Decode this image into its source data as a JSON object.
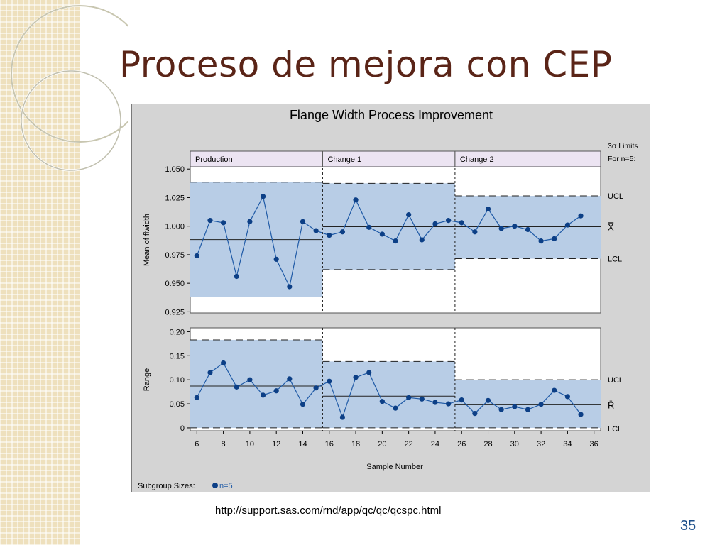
{
  "slide": {
    "title": "Proceso de mejora con CEP",
    "source_url": "http://support.sas.com/rnd/app/qc/qc/qcspc.html",
    "page_number": "35"
  },
  "colors": {
    "title": "#5a2417",
    "chart_background": "#d4d4d4",
    "control_band": "#b8cde6",
    "phase_header": "#ece4f2",
    "series_line": "#1f5aa6",
    "series_marker": "#0c3f86",
    "page_number": "#1c4f8a"
  },
  "chart_data": {
    "type": "line",
    "title": "Flange Width Process Improvement",
    "xlabel": "Sample Number",
    "x_ticks": [
      6,
      8,
      10,
      12,
      14,
      16,
      18,
      20,
      22,
      24,
      26,
      28,
      30,
      32,
      34,
      36
    ],
    "xlim": [
      5.5,
      36.5
    ],
    "limits_note": [
      "3σ Limits",
      "For n=5:"
    ],
    "subgroup_label": "Subgroup Sizes:",
    "subgroup_value": "n=5",
    "phases": [
      {
        "name": "Production",
        "start": 5.5,
        "end": 15.5
      },
      {
        "name": "Change 1",
        "start": 15.5,
        "end": 25.5
      },
      {
        "name": "Change 2",
        "start": 25.5,
        "end": 36.5
      }
    ],
    "panels": [
      {
        "name": "mean",
        "ylabel": "Mean of flwidth",
        "ylim": [
          0.924,
          1.052
        ],
        "y_ticks": [
          0.925,
          0.95,
          0.975,
          1.0,
          1.025,
          1.05
        ],
        "y_tick_labels": [
          "0.925",
          "0.950",
          "0.975",
          "1.000",
          "1.025",
          "1.050"
        ],
        "center_label": "X̿",
        "ucl_label": "UCL",
        "lcl_label": "LCL",
        "limits": [
          {
            "ucl": 1.0385,
            "center": 0.9882,
            "lcl": 0.938
          },
          {
            "ucl": 1.0375,
            "center": 0.9995,
            "lcl": 0.962
          },
          {
            "ucl": 1.0265,
            "center": 0.9995,
            "lcl": 0.9715
          }
        ],
        "x": [
          6,
          7,
          8,
          9,
          10,
          11,
          12,
          13,
          14,
          15,
          16,
          17,
          18,
          19,
          20,
          21,
          22,
          23,
          24,
          25,
          26,
          27,
          28,
          29,
          30,
          31,
          32,
          33,
          34,
          35
        ],
        "values": [
          0.974,
          1.005,
          1.003,
          0.956,
          1.004,
          1.026,
          0.971,
          0.947,
          1.004,
          0.996,
          0.992,
          0.995,
          1.023,
          0.999,
          0.993,
          0.987,
          1.01,
          0.988,
          1.002,
          1.005,
          1.003,
          0.995,
          1.015,
          0.998,
          1.0,
          0.997,
          0.987,
          0.989,
          1.001,
          1.009
        ]
      },
      {
        "name": "range",
        "ylabel": "Range",
        "ylim": [
          -0.006,
          0.208
        ],
        "y_ticks": [
          0,
          0.05,
          0.1,
          0.15,
          0.2
        ],
        "y_tick_labels": [
          "0",
          "0.05",
          "0.10",
          "0.15",
          "0.20"
        ],
        "center_label": "R̄",
        "ucl_label": "UCL",
        "lcl_label": "LCL",
        "limits": [
          {
            "ucl": 0.183,
            "center": 0.087,
            "lcl": 0
          },
          {
            "ucl": 0.138,
            "center": 0.066,
            "lcl": 0
          },
          {
            "ucl": 0.1,
            "center": 0.048,
            "lcl": 0
          }
        ],
        "x": [
          6,
          7,
          8,
          9,
          10,
          11,
          12,
          13,
          14,
          15,
          16,
          17,
          18,
          19,
          20,
          21,
          22,
          23,
          24,
          25,
          26,
          27,
          28,
          29,
          30,
          31,
          32,
          33,
          34,
          35
        ],
        "values": [
          0.063,
          0.115,
          0.135,
          0.085,
          0.1,
          0.068,
          0.077,
          0.102,
          0.049,
          0.083,
          0.097,
          0.022,
          0.105,
          0.115,
          0.055,
          0.041,
          0.063,
          0.06,
          0.053,
          0.05,
          0.058,
          0.03,
          0.057,
          0.038,
          0.044,
          0.038,
          0.049,
          0.078,
          0.065,
          0.028
        ]
      }
    ]
  }
}
